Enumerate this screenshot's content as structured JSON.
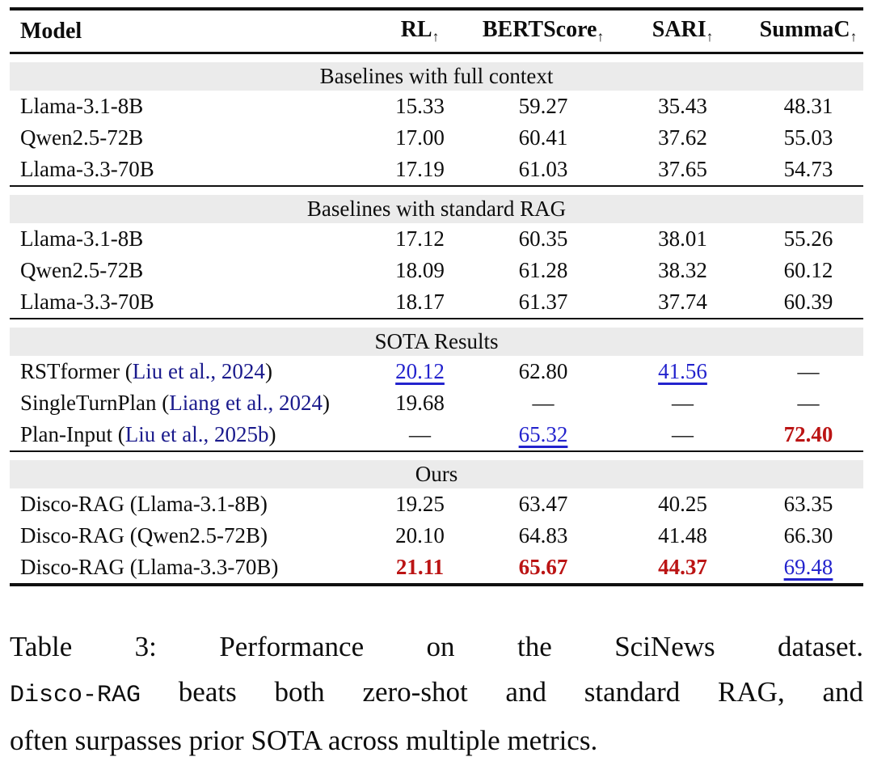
{
  "table": {
    "header": {
      "model_label": "Model",
      "metrics": [
        {
          "label": "RL",
          "arrow": "↑"
        },
        {
          "label": "BERTScore",
          "arrow": "↑"
        },
        {
          "label": "SARI",
          "arrow": "↑"
        },
        {
          "label": "SummaC",
          "arrow": "↑"
        }
      ]
    },
    "sections": [
      {
        "title": "Baselines with full context",
        "rows": [
          {
            "model": {
              "pre": "Llama-3.1-8B",
              "cite": "",
              "post": ""
            },
            "values": [
              {
                "v": "15.33"
              },
              {
                "v": "59.27"
              },
              {
                "v": "35.43"
              },
              {
                "v": "48.31"
              }
            ]
          },
          {
            "model": {
              "pre": "Qwen2.5-72B",
              "cite": "",
              "post": ""
            },
            "values": [
              {
                "v": "17.00"
              },
              {
                "v": "60.41"
              },
              {
                "v": "37.62"
              },
              {
                "v": "55.03"
              }
            ]
          },
          {
            "model": {
              "pre": "Llama-3.3-70B",
              "cite": "",
              "post": ""
            },
            "values": [
              {
                "v": "17.19"
              },
              {
                "v": "61.03"
              },
              {
                "v": "37.65"
              },
              {
                "v": "54.73"
              }
            ]
          }
        ]
      },
      {
        "title": "Baselines with standard RAG",
        "rows": [
          {
            "model": {
              "pre": "Llama-3.1-8B",
              "cite": "",
              "post": ""
            },
            "values": [
              {
                "v": "17.12"
              },
              {
                "v": "60.35"
              },
              {
                "v": "38.01"
              },
              {
                "v": "55.26"
              }
            ]
          },
          {
            "model": {
              "pre": "Qwen2.5-72B",
              "cite": "",
              "post": ""
            },
            "values": [
              {
                "v": "18.09"
              },
              {
                "v": "61.28"
              },
              {
                "v": "38.32"
              },
              {
                "v": "60.12"
              }
            ]
          },
          {
            "model": {
              "pre": "Llama-3.3-70B",
              "cite": "",
              "post": ""
            },
            "values": [
              {
                "v": "18.17"
              },
              {
                "v": "61.37"
              },
              {
                "v": "37.74"
              },
              {
                "v": "60.39"
              }
            ]
          }
        ]
      },
      {
        "title": "SOTA Results",
        "rows": [
          {
            "model": {
              "pre": "RSTformer (",
              "cite": "Liu et al., 2024",
              "post": ")"
            },
            "values": [
              {
                "v": "20.12",
                "s": "second"
              },
              {
                "v": "62.80"
              },
              {
                "v": "41.56",
                "s": "second"
              },
              {
                "v": "—"
              }
            ]
          },
          {
            "model": {
              "pre": "SingleTurnPlan (",
              "cite": "Liang et al., 2024",
              "post": ")"
            },
            "values": [
              {
                "v": "19.68"
              },
              {
                "v": "—"
              },
              {
                "v": "—"
              },
              {
                "v": "—"
              }
            ]
          },
          {
            "model": {
              "pre": "Plan-Input (",
              "cite": "Liu et al., 2025b",
              "post": ")"
            },
            "values": [
              {
                "v": "—"
              },
              {
                "v": "65.32",
                "s": "second"
              },
              {
                "v": "—"
              },
              {
                "v": "72.40",
                "s": "best"
              }
            ]
          }
        ]
      },
      {
        "title": "Ours",
        "rows": [
          {
            "model": {
              "pre": "Disco-RAG (Llama-3.1-8B)",
              "cite": "",
              "post": ""
            },
            "values": [
              {
                "v": "19.25"
              },
              {
                "v": "63.47"
              },
              {
                "v": "40.25"
              },
              {
                "v": "63.35"
              }
            ]
          },
          {
            "model": {
              "pre": "Disco-RAG (Qwen2.5-72B)",
              "cite": "",
              "post": ""
            },
            "values": [
              {
                "v": "20.10"
              },
              {
                "v": "64.83"
              },
              {
                "v": "41.48"
              },
              {
                "v": "66.30"
              }
            ]
          },
          {
            "model": {
              "pre": "Disco-RAG (Llama-3.3-70B)",
              "cite": "",
              "post": ""
            },
            "values": [
              {
                "v": "21.11",
                "s": "best"
              },
              {
                "v": "65.67",
                "s": "best"
              },
              {
                "v": "44.37",
                "s": "best"
              },
              {
                "v": "69.48",
                "s": "second"
              }
            ]
          }
        ]
      }
    ]
  },
  "caption": {
    "line1": "Table 3: Performance on the SciNews dataset.",
    "line2_code": "Disco-RAG",
    "line2_rest": " beats both zero-shot and standard RAG, and",
    "line3": "often surpasses prior SOTA across multiple metrics."
  },
  "colors": {
    "citation": "#1a1a8c",
    "second_best_value": "#2323cd",
    "best_value": "#bb1414",
    "section_band": "#ebebeb",
    "rule": "#101010"
  }
}
